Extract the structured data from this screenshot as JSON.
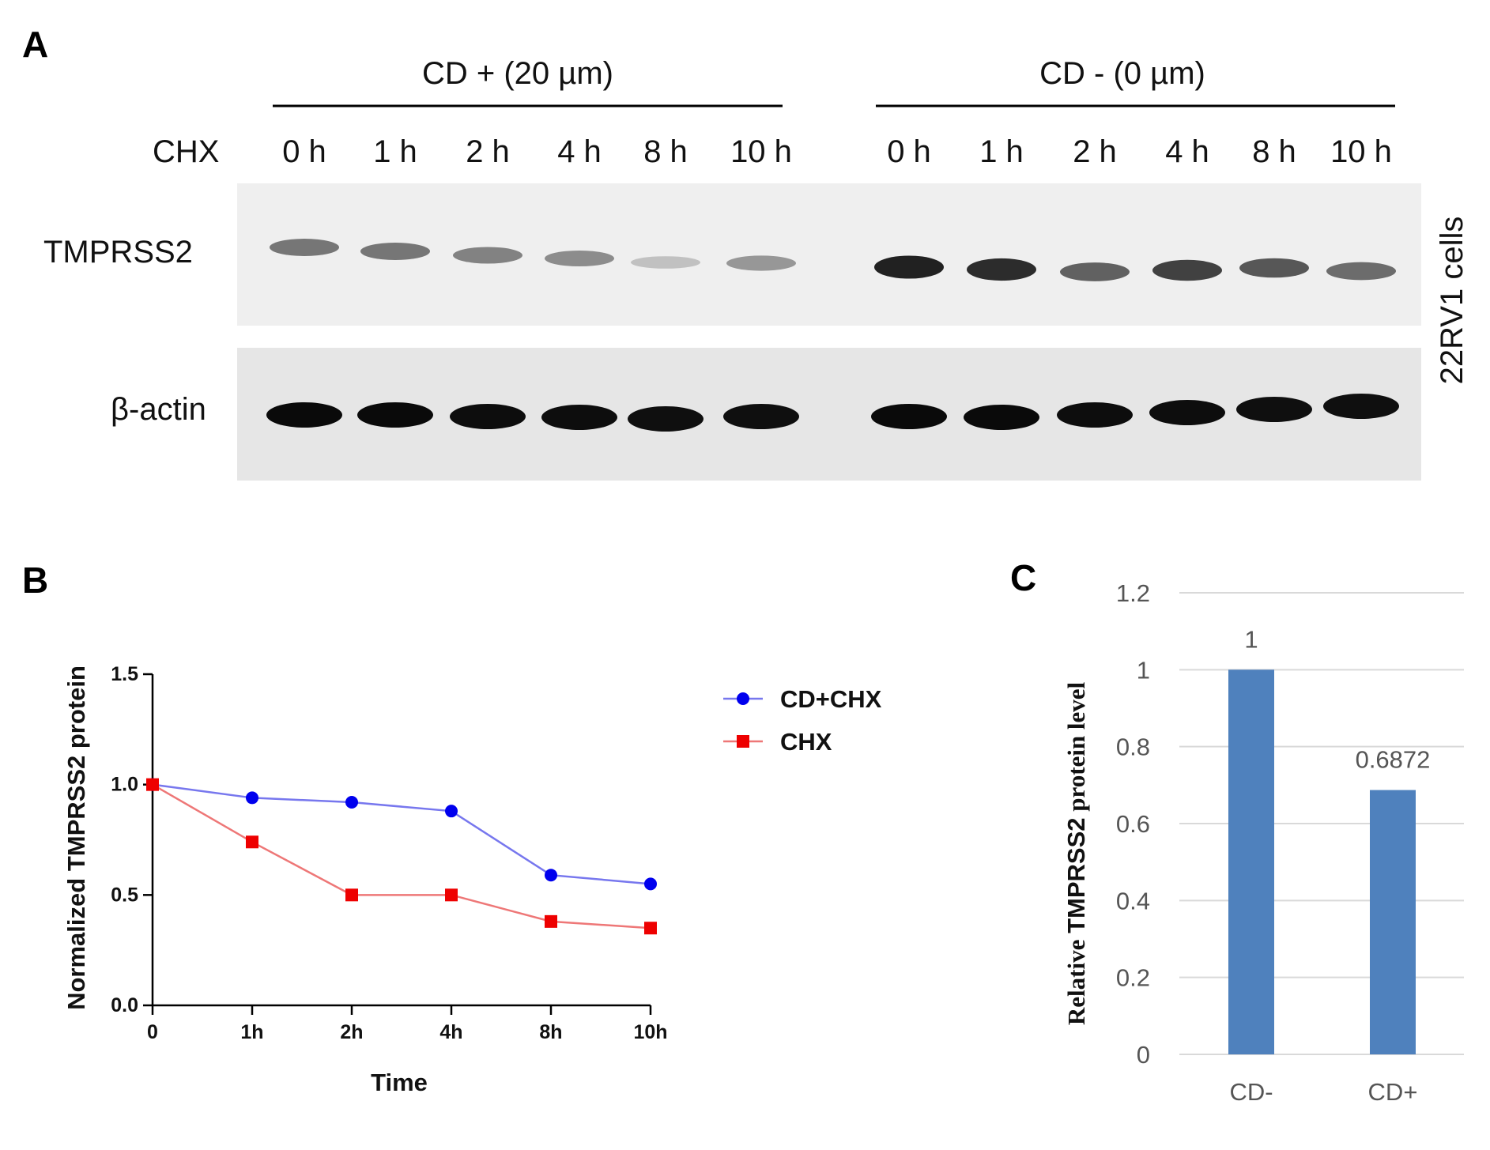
{
  "panel_labels": {
    "a": "A",
    "b": "B",
    "c": "C"
  },
  "blot": {
    "group_left": "CD + (20 µm)",
    "group_right": "CD - (0 µm)",
    "row_label": "CHX",
    "lanes_left": [
      "0 h",
      "1 h",
      "2 h",
      "4 h",
      "8 h",
      "10 h"
    ],
    "lanes_right": [
      "0 h",
      "1 h",
      "2 h",
      "4 h",
      "8 h",
      "10 h"
    ],
    "protein_top": "TMPRSS2",
    "protein_bottom": "β-actin",
    "cell_line": "22RV1 cells",
    "band_intensity_tmprss2": [
      0.55,
      0.55,
      0.5,
      0.45,
      0.2,
      0.4,
      0.95,
      0.9,
      0.65,
      0.8,
      0.7,
      0.6
    ],
    "band_intensity_actin": [
      1,
      1,
      0.95,
      0.95,
      0.9,
      0.9,
      1,
      1,
      0.95,
      0.95,
      0.9,
      0.9
    ]
  },
  "chart_data": [
    {
      "type": "line",
      "categories": [
        "0",
        "1h",
        "2h",
        "4h",
        "8h",
        "10h"
      ],
      "series": [
        {
          "name": "CD+CHX",
          "values": [
            1.0,
            0.94,
            0.92,
            0.88,
            0.59,
            0.55
          ],
          "color": "#0000ee",
          "line_color": "#7777ee",
          "marker": "circle"
        },
        {
          "name": "CHX",
          "values": [
            1.0,
            0.74,
            0.5,
            0.5,
            0.38,
            0.35
          ],
          "color": "#ee0000",
          "line_color": "#ee7777",
          "marker": "square"
        }
      ],
      "xlabel": "Time",
      "ylabel": "Normalized TMPRSS2 protein",
      "ylim": [
        0,
        1.5
      ],
      "yticks": [
        "0.0",
        "0.5",
        "1.0",
        "1.5"
      ],
      "grid": false,
      "legend": "right"
    },
    {
      "type": "bar",
      "categories": [
        "CD-",
        "CD+"
      ],
      "values": [
        1,
        0.6872
      ],
      "data_labels": [
        "1",
        "0.6872"
      ],
      "ylabel_prefix": "Relative ",
      "ylabel_main": "TMPRSS2",
      "ylabel_suffix": " protein level",
      "ylim": [
        0,
        1.2
      ],
      "yticks": [
        "0",
        "0.2",
        "0.4",
        "0.6",
        "0.8",
        "1",
        "1.2"
      ],
      "grid": true,
      "bar_color": "#4f81bd"
    }
  ]
}
